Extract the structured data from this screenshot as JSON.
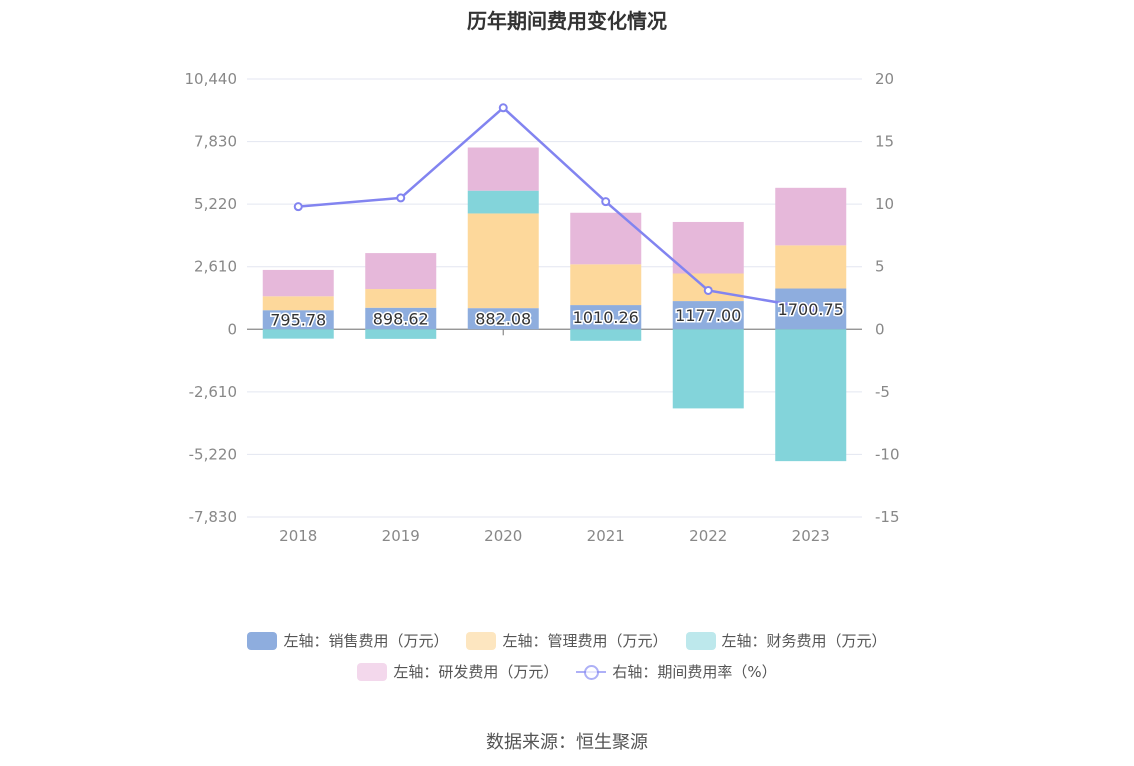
{
  "chart_data": {
    "type": "bar",
    "title": "历年期间费用变化情况",
    "categories": [
      "2018",
      "2019",
      "2020",
      "2021",
      "2022",
      "2023"
    ],
    "stacked": true,
    "series": [
      {
        "name": "左轴：销售费用（万元）",
        "axis": "left",
        "color": "#8eadde",
        "values": [
          795.78,
          898.62,
          882.08,
          1010.26,
          1177.0,
          1700.75
        ],
        "labels": [
          "795.78",
          "898.62",
          "882.08",
          "1010.26",
          "1177.00",
          "1700.75"
        ]
      },
      {
        "name": "左轴：管理费用（万元）",
        "axis": "left",
        "color": "#fdd89b",
        "values": [
          580,
          780,
          3950,
          1700,
          1150,
          1800
        ]
      },
      {
        "name": "左轴：财务费用（万元）",
        "axis": "left",
        "color": "#83d4da",
        "values": [
          -390,
          -400,
          950,
          -480,
          -3300,
          -5500
        ]
      },
      {
        "name": "左轴：研发费用（万元）",
        "axis": "left",
        "color": "#e6b8da",
        "values": [
          1100,
          1500,
          1800,
          2150,
          2150,
          2400
        ]
      },
      {
        "name": "右轴：期间费用率（%）",
        "axis": "right",
        "type": "line",
        "color": "#8284f0",
        "values": [
          9.8,
          10.5,
          17.7,
          10.2,
          3.1,
          1.7
        ]
      }
    ],
    "left_axis": {
      "ticks": [
        "10,440",
        "7,830",
        "5,220",
        "2,610",
        "0",
        "-2,610",
        "-5,220",
        "-7,830"
      ],
      "ylim": [
        -7830,
        10440
      ]
    },
    "right_axis": {
      "ticks": [
        "20",
        "15",
        "10",
        "5",
        "0",
        "-5",
        "-10",
        "-15"
      ],
      "ylim": [
        -15,
        20
      ]
    },
    "grid": true,
    "legend_position": "bottom"
  },
  "source": "数据来源：恒生聚源"
}
